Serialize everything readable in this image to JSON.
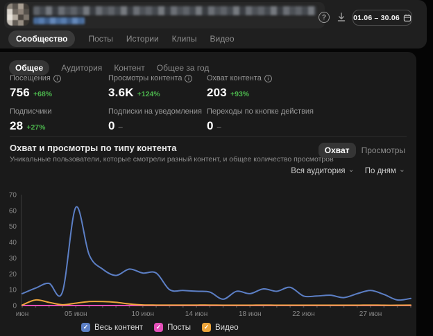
{
  "icons": {
    "help": "?",
    "info": "i",
    "check": "✓",
    "chevron_down": "⌄"
  },
  "header": {
    "date_range": "01.06 – 30.06",
    "tabs": [
      {
        "label": "Сообщество",
        "active": true
      },
      {
        "label": "Посты",
        "active": false
      },
      {
        "label": "Истории",
        "active": false
      },
      {
        "label": "Клипы",
        "active": false
      },
      {
        "label": "Видео",
        "active": false
      }
    ]
  },
  "subtabs": [
    {
      "label": "Общее",
      "active": true
    },
    {
      "label": "Аудитория",
      "active": false
    },
    {
      "label": "Контент",
      "active": false
    },
    {
      "label": "Общее за год",
      "active": false
    }
  ],
  "metrics": [
    {
      "label": "Посещения",
      "info": true,
      "value": "756",
      "change": "+68%"
    },
    {
      "label": "Просмотры контента",
      "info": true,
      "value": "3.6K",
      "change": "+124%"
    },
    {
      "label": "Охват контента",
      "info": true,
      "value": "203",
      "change": "+93%"
    },
    {
      "label": "Подписчики",
      "info": false,
      "value": "28",
      "change": "+27%"
    },
    {
      "label": "Подписки на уведомления",
      "info": false,
      "value": "0",
      "change": "–"
    },
    {
      "label": "Переходы по кнопке действия",
      "info": false,
      "value": "0",
      "change": "–"
    }
  ],
  "section": {
    "title": "Охват и просмотры по типу контента",
    "subtitle": "Уникальные пользователи, которые смотрели разный контент, и общее количество просмотров",
    "toggle": [
      {
        "label": "Охват",
        "active": true
      },
      {
        "label": "Просмотры",
        "active": false
      }
    ],
    "filters": [
      {
        "label": "Вся аудитория"
      },
      {
        "label": "По дням"
      }
    ]
  },
  "chart_data": {
    "type": "line",
    "title": "Охват и просмотры по типу контента",
    "ylim": [
      0,
      70
    ],
    "yticks": [
      0,
      10,
      20,
      30,
      40,
      50,
      60,
      70
    ],
    "grid": false,
    "legend_position": "bottom",
    "x_days": [
      1,
      2,
      3,
      4,
      5,
      6,
      7,
      8,
      9,
      10,
      11,
      12,
      13,
      14,
      15,
      16,
      17,
      18,
      19,
      20,
      21,
      22,
      23,
      24,
      25,
      26,
      27,
      28,
      29,
      30
    ],
    "x_tick_labels": [
      {
        "day": 1,
        "label": "июн"
      },
      {
        "day": 5,
        "label": "05 июн"
      },
      {
        "day": 10,
        "label": "10 июн"
      },
      {
        "day": 14,
        "label": "14 июн"
      },
      {
        "day": 18,
        "label": "18 июн"
      },
      {
        "day": 22,
        "label": "22 июн"
      },
      {
        "day": 27,
        "label": "27 июн"
      }
    ],
    "series": [
      {
        "name": "Весь контент",
        "color": "#5c7fc5",
        "values": [
          7.5,
          11,
          14,
          8.5,
          62,
          32,
          23,
          19,
          23,
          20.5,
          20.5,
          10,
          9.5,
          9,
          8.5,
          4,
          9,
          7.5,
          10.5,
          9,
          11.5,
          6,
          6,
          6.5,
          5,
          7.5,
          9.5,
          7,
          3.5,
          4.5
        ]
      },
      {
        "name": "Посты",
        "color": "#e34fb8",
        "values": [
          0,
          0,
          0,
          0,
          0,
          0,
          0,
          0,
          0,
          0,
          0,
          0,
          0,
          0,
          0,
          0,
          0,
          0,
          0,
          0,
          0,
          0,
          0,
          0,
          0,
          0,
          0,
          0,
          0,
          0
        ]
      },
      {
        "name": "Видео",
        "color": "#eda53b",
        "values": [
          0.3,
          3.5,
          2,
          0.5,
          1.5,
          2.5,
          2.5,
          2,
          1,
          0.4,
          0.3,
          0.3,
          0.3,
          0.3,
          0.3,
          0.2,
          0.2,
          0.2,
          0.3,
          0.2,
          0.2,
          0.2,
          0.2,
          0.2,
          0.2,
          0.2,
          0.3,
          0.2,
          0.2,
          0.3
        ]
      }
    ],
    "axis_color": "#3a3a3a",
    "tick_text_color": "#8a8a8a"
  }
}
